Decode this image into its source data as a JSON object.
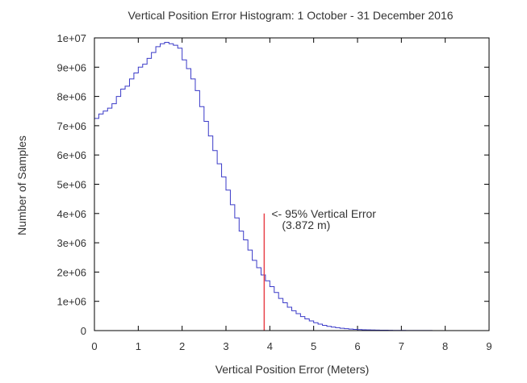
{
  "chart_data": {
    "type": "histogram",
    "title": "Vertical Position Error Histogram: 1 October - 31 December 2016",
    "xlabel": "Vertical Position Error (Meters)",
    "ylabel": "Number of Samples",
    "xlim": [
      0,
      9
    ],
    "ylim": [
      0,
      10000000
    ],
    "xticks": [
      "0",
      "1",
      "2",
      "3",
      "4",
      "5",
      "6",
      "7",
      "8",
      "9"
    ],
    "yticks": [
      "0",
      "1e+06",
      "2e+06",
      "3e+06",
      "4e+06",
      "5e+06",
      "6e+06",
      "7e+06",
      "8e+06",
      "9e+06",
      "1e+07"
    ],
    "grid": false,
    "series": [
      {
        "color": "#3a3ac8",
        "bin_width": 0.1,
        "bin_start": 0,
        "values": [
          7250000,
          7400000,
          7500000,
          7600000,
          7750000,
          8000000,
          8250000,
          8350000,
          8600000,
          8800000,
          9000000,
          9100000,
          9300000,
          9500000,
          9700000,
          9800000,
          9850000,
          9800000,
          9750000,
          9650000,
          9250000,
          8950000,
          8600000,
          8200000,
          7650000,
          7150000,
          6650000,
          6150000,
          5700000,
          5250000,
          4800000,
          4300000,
          3850000,
          3400000,
          3100000,
          2750000,
          2400000,
          2150000,
          1900000,
          1700000,
          1500000,
          1300000,
          1100000,
          950000,
          800000,
          680000,
          580000,
          480000,
          400000,
          330000,
          270000,
          220000,
          180000,
          145000,
          120000,
          100000,
          80000,
          65000,
          52000,
          42000,
          35000,
          29000,
          24000,
          20000,
          17000,
          14000,
          12000,
          10000,
          8500,
          7000,
          6000,
          5000,
          4200,
          3500,
          3000,
          2500,
          2000,
          1600
        ]
      }
    ],
    "marker": {
      "x": 3.872,
      "y_top": 4000000,
      "color": "#e8434a",
      "label_line1": "<- 95% Vertical Error",
      "label_line2": "(3.872 m)"
    }
  }
}
